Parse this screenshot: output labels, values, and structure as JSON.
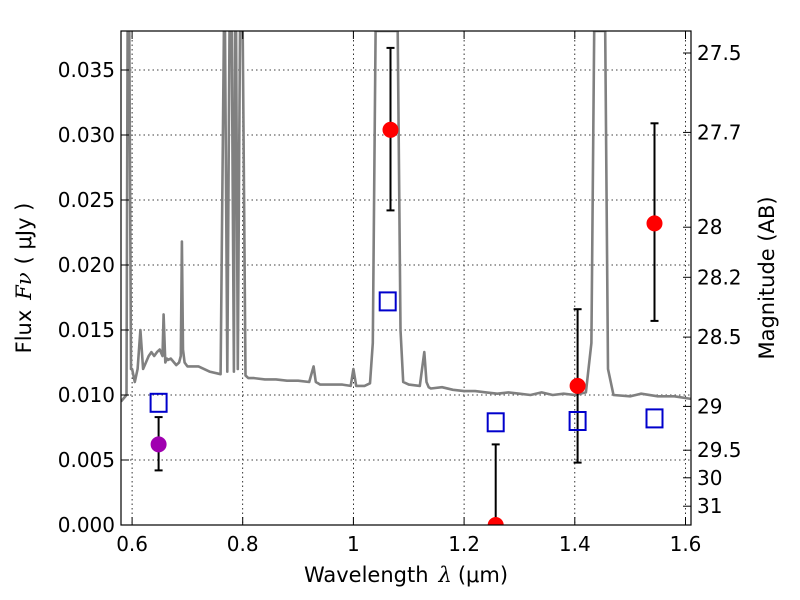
{
  "chart_data": {
    "type": "scatter",
    "xlabel": "Wavelength",
    "xlabel_symbol": "λ",
    "xlabel_unit": "(μm)",
    "ylabel": "Flux",
    "ylabel_symbol": "Fν",
    "ylabel_unit": "( μJy )",
    "y2label": "Magnitude (AB)",
    "xlim": [
      0.58,
      1.61
    ],
    "ylim": [
      0,
      0.038
    ],
    "grid": true,
    "x_ticks": [
      0.6,
      0.8,
      1.0,
      1.2,
      1.4,
      1.6
    ],
    "x_tick_labels": [
      "0.6",
      "0.8",
      "1",
      "1.2",
      "1.4",
      "1.6"
    ],
    "y_ticks": [
      0,
      0.005,
      0.01,
      0.015,
      0.02,
      0.025,
      0.03,
      0.035
    ],
    "y_tick_labels": [
      "0.000",
      "0.005",
      "0.010",
      "0.015",
      "0.020",
      "0.025",
      "0.030",
      "0.035"
    ],
    "mag_ticks": [
      27.5,
      27.7,
      28,
      28.2,
      28.5,
      29,
      29.5,
      30,
      31
    ],
    "mag_tick_labels": [
      "27.5",
      "27.7",
      "28",
      "28.2",
      "28.5",
      "29",
      "29.5",
      "30",
      "31"
    ],
    "colors": {
      "template": "#808080",
      "observed": "#ff0000",
      "observed_alt": "#a000b0",
      "model": "#0000cc",
      "errorbar": "#000000",
      "grid": "#000000"
    },
    "template_spectrum": {
      "x": [
        0.58,
        0.59,
        0.592,
        0.595,
        0.598,
        0.6,
        0.605,
        0.61,
        0.615,
        0.62,
        0.625,
        0.63,
        0.635,
        0.64,
        0.645,
        0.65,
        0.655,
        0.657,
        0.66,
        0.663,
        0.665,
        0.67,
        0.68,
        0.685,
        0.688,
        0.69,
        0.692,
        0.695,
        0.7,
        0.72,
        0.74,
        0.76,
        0.766,
        0.768,
        0.772,
        0.776,
        0.78,
        0.784,
        0.786,
        0.788,
        0.791,
        0.795,
        0.8,
        0.805,
        0.81,
        0.82,
        0.84,
        0.86,
        0.88,
        0.9,
        0.92,
        0.928,
        0.932,
        0.936,
        0.94,
        0.96,
        0.98,
        0.995,
        1.0,
        1.005,
        1.01,
        1.02,
        1.03,
        1.035,
        1.04,
        1.045,
        1.05,
        1.06,
        1.07,
        1.08,
        1.085,
        1.09,
        1.1,
        1.12,
        1.128,
        1.132,
        1.136,
        1.14,
        1.16,
        1.18,
        1.2,
        1.22,
        1.24,
        1.26,
        1.28,
        1.3,
        1.32,
        1.34,
        1.36,
        1.38,
        1.4,
        1.42,
        1.43,
        1.435,
        1.44,
        1.445,
        1.45,
        1.455,
        1.46,
        1.47,
        1.5,
        1.52,
        1.55,
        1.58,
        1.61
      ],
      "y": [
        0.0095,
        0.01,
        0.038,
        0.038,
        0.012,
        0.012,
        0.011,
        0.012,
        0.015,
        0.012,
        0.0125,
        0.013,
        0.0133,
        0.013,
        0.0133,
        0.0135,
        0.013,
        0.0162,
        0.0125,
        0.0128,
        0.0127,
        0.0128,
        0.0123,
        0.0125,
        0.013,
        0.0218,
        0.0135,
        0.0125,
        0.0122,
        0.0122,
        0.0118,
        0.0116,
        0.038,
        0.038,
        0.0118,
        0.038,
        0.038,
        0.0118,
        0.038,
        0.038,
        0.012,
        0.038,
        0.038,
        0.0115,
        0.0113,
        0.0113,
        0.0112,
        0.0112,
        0.0111,
        0.0111,
        0.011,
        0.0122,
        0.011,
        0.0109,
        0.0108,
        0.0108,
        0.0108,
        0.0107,
        0.012,
        0.0107,
        0.0107,
        0.0107,
        0.0109,
        0.014,
        0.038,
        0.038,
        0.038,
        0.038,
        0.038,
        0.038,
        0.015,
        0.011,
        0.0108,
        0.0107,
        0.0133,
        0.011,
        0.0106,
        0.0105,
        0.0106,
        0.0104,
        0.0103,
        0.0103,
        0.0102,
        0.0101,
        0.0102,
        0.0101,
        0.01,
        0.0102,
        0.01,
        0.0101,
        0.01,
        0.0102,
        0.014,
        0.038,
        0.038,
        0.038,
        0.038,
        0.038,
        0.012,
        0.01,
        0.0099,
        0.0101,
        0.0099,
        0.0099,
        0.0097
      ]
    },
    "observed_points": [
      {
        "x": 0.648,
        "y": 0.0062,
        "err_low": 0.0042,
        "err_high": 0.0083,
        "color": "observed_alt"
      },
      {
        "x": 1.067,
        "y": 0.0304,
        "err_low": 0.0242,
        "err_high": 0.0367,
        "color": "observed"
      },
      {
        "x": 1.257,
        "y": 0.0,
        "err_low": 0.0,
        "err_high": 0.0062,
        "color": "observed"
      },
      {
        "x": 1.405,
        "y": 0.0107,
        "err_low": 0.0048,
        "err_high": 0.0166,
        "color": "observed"
      },
      {
        "x": 1.544,
        "y": 0.0232,
        "err_low": 0.0157,
        "err_high": 0.0309,
        "color": "observed"
      }
    ],
    "model_points": [
      {
        "x": 0.648,
        "y": 0.0094
      },
      {
        "x": 1.062,
        "y": 0.0172
      },
      {
        "x": 1.257,
        "y": 0.0079
      },
      {
        "x": 1.405,
        "y": 0.008
      },
      {
        "x": 1.544,
        "y": 0.0082
      }
    ]
  }
}
